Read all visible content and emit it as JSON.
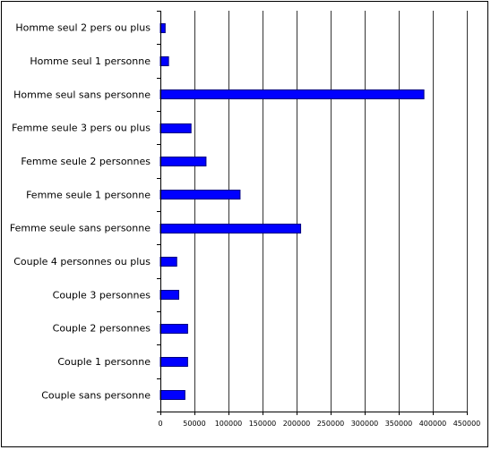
{
  "chart_data": {
    "type": "bar",
    "orientation": "horizontal",
    "title": "",
    "xlabel": "",
    "ylabel": "",
    "categories": [
      "Homme seul  2 pers ou plus",
      "Homme seul 1 personne",
      "Homme seul sans personne",
      "Femme seule 3 pers ou plus",
      "Femme seule 2 personnes",
      "Femme seule 1 personne",
      "Femme seule sans personne",
      "Couple 4 personnes ou plus",
      "Couple 3 personnes",
      "Couple 2 personnes",
      "Couple 1 personne",
      "Couple sans personne"
    ],
    "values": [
      7000,
      12000,
      387000,
      45000,
      67000,
      117000,
      206000,
      24000,
      27000,
      40000,
      40000,
      36000
    ],
    "xlim": [
      0,
      450000
    ],
    "xticks": [
      0,
      50000,
      100000,
      150000,
      200000,
      250000,
      300000,
      350000,
      400000,
      450000
    ],
    "grid": "vertical",
    "legend": "none",
    "bar_color": "#0000ff",
    "bar_edge_color": "#000080"
  }
}
